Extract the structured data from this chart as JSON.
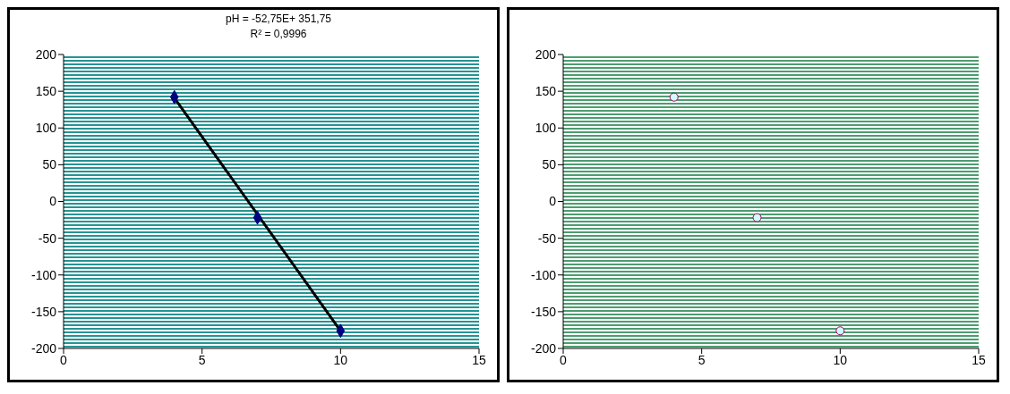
{
  "chart_data": [
    {
      "type": "scatter",
      "x": [
        4,
        7,
        10
      ],
      "marker": "diamond",
      "series": [
        {
          "color": "#000080",
          "values": [
            142,
            -22,
            -176
          ]
        },
        {
          "type": "line",
          "color": "#000000",
          "x": [
            4,
            10
          ],
          "values": [
            141,
            -176
          ],
          "marker": "none"
        }
      ],
      "annotations": [
        "pH = -52,75E+ 351,75",
        "R² = 0,9996"
      ],
      "xlim": [
        0,
        15
      ],
      "xticks": [
        0,
        5,
        10,
        15
      ],
      "ylim": [
        -200,
        200
      ],
      "yticks": [
        -200,
        -150,
        -100,
        -50,
        0,
        50,
        100,
        150,
        200
      ]
    },
    {
      "type": "scatter",
      "x": [
        4,
        7,
        10
      ],
      "marker": "circle",
      "series": [
        {
          "color": "#ccffff",
          "values": [
            142,
            -22,
            -176
          ]
        }
      ],
      "xlim": [
        0,
        15
      ],
      "xticks": [
        0,
        5,
        10,
        15
      ],
      "ylim": [
        -200,
        200
      ],
      "yticks": [
        -200,
        -150,
        -100,
        -50,
        0,
        50,
        100,
        150,
        200
      ]
    }
  ]
}
